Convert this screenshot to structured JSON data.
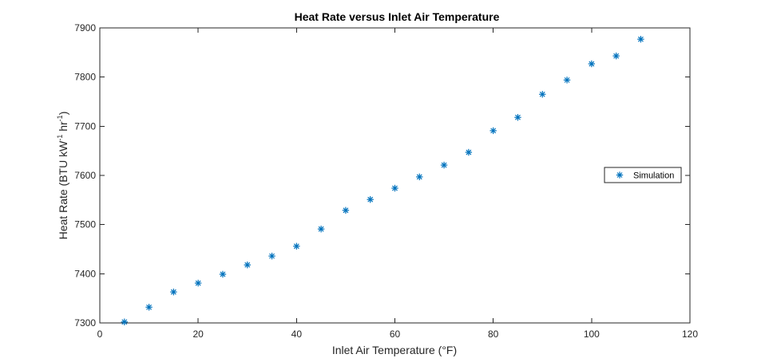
{
  "chart_data": {
    "type": "scatter",
    "title": "Heat Rate versus Inlet Air Temperature",
    "xlabel": "Inlet Air Temperature (°F)",
    "ylabel": {
      "prefix": "Heat Rate (BTU kW",
      "sup1": "-1",
      "middle": " hr",
      "sup2": "-1",
      "suffix": ")"
    },
    "xlim": [
      0,
      120
    ],
    "ylim": [
      7300,
      7900
    ],
    "xticks": [
      0,
      20,
      40,
      60,
      80,
      100,
      120
    ],
    "yticks": [
      7300,
      7400,
      7500,
      7600,
      7700,
      7800,
      7900
    ],
    "grid": false,
    "legend": {
      "position": "right",
      "entries": [
        "Simulation"
      ]
    },
    "marker": "asterisk",
    "series": [
      {
        "name": "Simulation",
        "color": "#0072BD",
        "x": [
          5,
          10,
          15,
          20,
          25,
          30,
          35,
          40,
          45,
          50,
          55,
          60,
          65,
          70,
          75,
          80,
          85,
          90,
          95,
          100,
          105,
          110
        ],
        "y": [
          7302,
          7332,
          7363,
          7381,
          7399,
          7418,
          7436,
          7456,
          7491,
          7529,
          7551,
          7574,
          7597,
          7621,
          7647,
          7691,
          7718,
          7765,
          7794,
          7827,
          7843,
          7877
        ]
      }
    ]
  }
}
